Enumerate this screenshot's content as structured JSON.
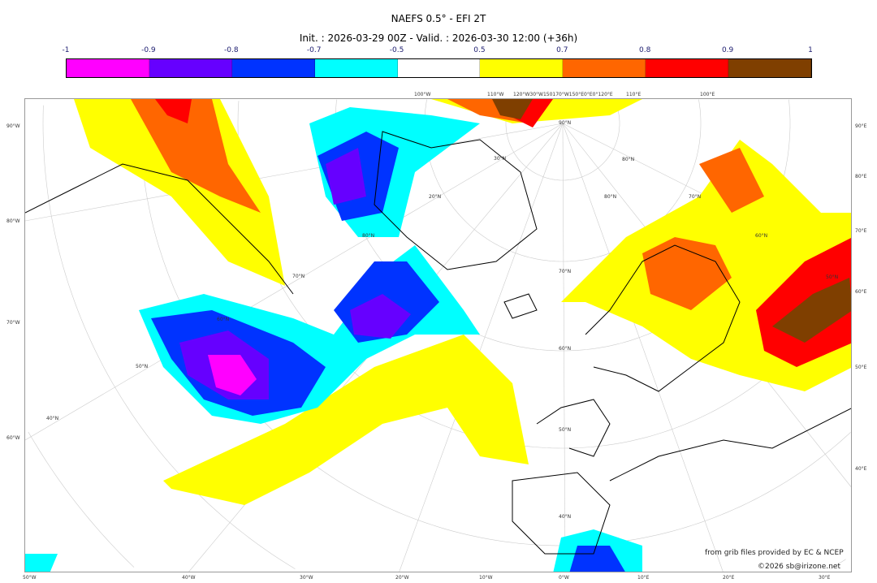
{
  "header": {
    "title": "NAEFS 0.5° - EFI 2T",
    "subtitle": "Init. : 2026-03-29 00Z - Valid. : 2026-03-30 12:00 (+36h)"
  },
  "colorbar": {
    "ticks": [
      "-1",
      "-0.9",
      "-0.8",
      "-0.7",
      "-0.5",
      "0.5",
      "0.7",
      "0.8",
      "0.9",
      "1"
    ],
    "colors": [
      "#ff00ff",
      "#6600ff",
      "#0033ff",
      "#00ffff",
      "#ffffff",
      "#ffff00",
      "#ff6600",
      "#ff0000",
      "#7f3f00"
    ]
  },
  "axes": {
    "left": [
      "90°W",
      "80°W",
      "70°W",
      "60°W"
    ],
    "right": [
      "90°E",
      "80°E",
      "70°E",
      "60°E",
      "50°E",
      "40°E"
    ],
    "bottom": [
      "50°W",
      "40°W",
      "30°W",
      "20°W",
      "10°W",
      "0°W",
      "10°E",
      "20°E",
      "30°E"
    ],
    "top": [
      "100°W",
      "110°W",
      "120°W30°W150170°W150°E0°E0°120°E",
      "110°E",
      "100°E"
    ],
    "inner": [
      "90°N",
      "80°N",
      "70°N",
      "60°N",
      "50°N",
      "40°N",
      "30°N",
      "20°N",
      "80°N",
      "70°N",
      "60°N",
      "50°N",
      "40°N",
      "80°N",
      "70°N",
      "60°N",
      "50°N",
      "40°N",
      "60°N",
      "70°N"
    ]
  },
  "credits": {
    "source": "from grib files provided by EC & NCEP",
    "copyright": "©2026 sb@irizone.net"
  }
}
